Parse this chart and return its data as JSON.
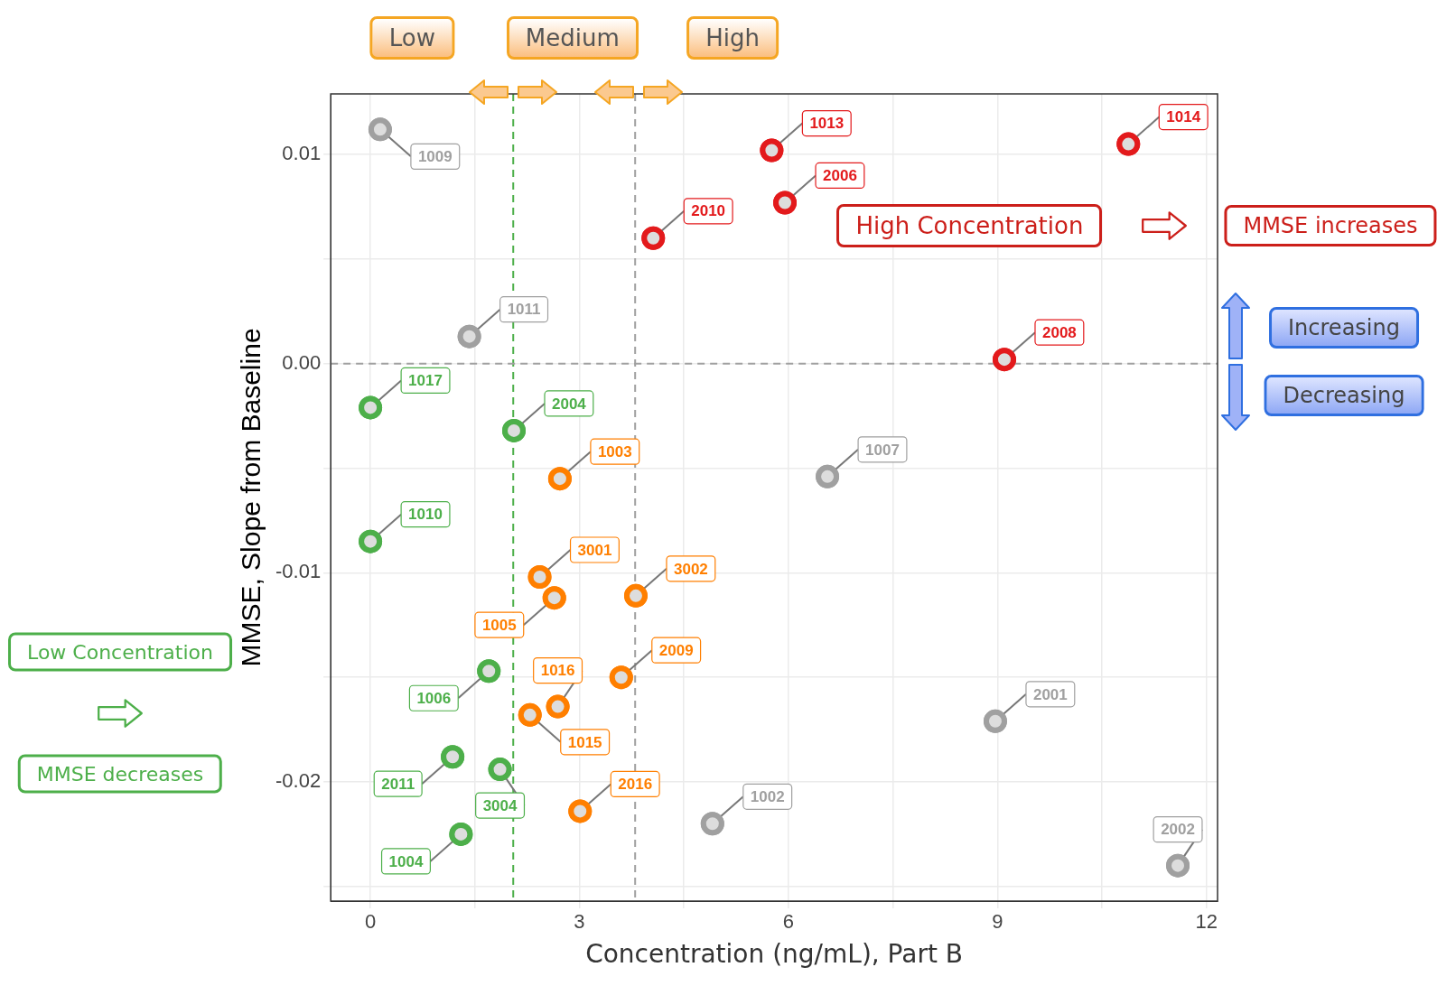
{
  "chart_data": {
    "type": "scatter",
    "xlabel": "Concentration (ng/mL), Part B",
    "ylabel": "MMSE, Slope from Baseline",
    "xlim": [
      -0.57,
      12.16
    ],
    "xticks": [
      0,
      {
        "value": 1.5,
        "label": null
      },
      3,
      {
        "value": 4.5,
        "label": null
      },
      6,
      {
        "value": 7.5,
        "label": null
      },
      9,
      {
        "value": 10.5,
        "label": null
      },
      12
    ],
    "ylim": [
      -0.0257,
      0.0129
    ],
    "yticks": [
      {
        "value": -0.025,
        "label": null
      },
      {
        "value": -0.02,
        "label": "-0.02"
      },
      {
        "value": -0.015,
        "label": null
      },
      {
        "value": -0.01,
        "label": "-0.01"
      },
      {
        "value": -0.005,
        "label": null
      },
      {
        "value": 0,
        "label": "0.00"
      },
      {
        "value": 0.005,
        "label": null
      },
      {
        "value": 0.01,
        "label": "0.01"
      }
    ],
    "grid": true,
    "marker": "circle",
    "series": [
      {
        "name": "1009",
        "color": "#a0a0a0",
        "x": [
          0.14
        ],
        "values": [
          0.0112
        ]
      },
      {
        "name": "1011",
        "color": "#a0a0a0",
        "x": [
          1.42
        ],
        "values": [
          0.0013
        ]
      },
      {
        "name": "1007",
        "color": "#a0a0a0",
        "x": [
          6.56
        ],
        "values": [
          -0.0054
        ]
      },
      {
        "name": "2001",
        "color": "#a0a0a0",
        "x": [
          8.97
        ],
        "values": [
          -0.0171
        ]
      },
      {
        "name": "1002",
        "color": "#a0a0a0",
        "x": [
          4.91
        ],
        "values": [
          -0.022
        ]
      },
      {
        "name": "2002",
        "color": "#a0a0a0",
        "x": [
          11.59
        ],
        "values": [
          -0.024
        ]
      },
      {
        "name": "1013",
        "color": "#e31a1c",
        "x": [
          5.76
        ],
        "values": [
          0.0102
        ]
      },
      {
        "name": "1014",
        "color": "#e31a1c",
        "x": [
          10.88
        ],
        "values": [
          0.0105
        ]
      },
      {
        "name": "2006",
        "color": "#e31a1c",
        "x": [
          5.95
        ],
        "values": [
          0.0077
        ]
      },
      {
        "name": "2010",
        "color": "#e31a1c",
        "x": [
          4.06
        ],
        "values": [
          0.006
        ]
      },
      {
        "name": "2008",
        "color": "#e31a1c",
        "x": [
          9.1
        ],
        "values": [
          0.0002
        ]
      },
      {
        "name": "1003",
        "color": "#ff7f00",
        "x": [
          2.72
        ],
        "values": [
          -0.0055
        ]
      },
      {
        "name": "3001",
        "color": "#ff7f00",
        "x": [
          2.43
        ],
        "values": [
          -0.0102
        ]
      },
      {
        "name": "1005",
        "color": "#ff7f00",
        "x": [
          2.64
        ],
        "values": [
          -0.0112
        ]
      },
      {
        "name": "3002",
        "color": "#ff7f00",
        "x": [
          3.81
        ],
        "values": [
          -0.0111
        ]
      },
      {
        "name": "2009",
        "color": "#ff7f00",
        "x": [
          3.6
        ],
        "values": [
          -0.015
        ]
      },
      {
        "name": "1016",
        "color": "#ff7f00",
        "x": [
          2.69
        ],
        "values": [
          -0.0164
        ]
      },
      {
        "name": "1015",
        "color": "#ff7f00",
        "x": [
          2.29
        ],
        "values": [
          -0.0168
        ]
      },
      {
        "name": "2016",
        "color": "#ff7f00",
        "x": [
          3.01
        ],
        "values": [
          -0.0214
        ]
      },
      {
        "name": "1017",
        "color": "#4daf4a",
        "x": [
          0
        ],
        "values": [
          -0.0021
        ]
      },
      {
        "name": "2004",
        "color": "#4daf4a",
        "x": [
          2.06
        ],
        "values": [
          -0.0032
        ]
      },
      {
        "name": "1010",
        "color": "#4daf4a",
        "x": [
          0
        ],
        "values": [
          -0.0085
        ]
      },
      {
        "name": "1006",
        "color": "#4daf4a",
        "x": [
          1.7
        ],
        "values": [
          -0.0147
        ]
      },
      {
        "name": "2011",
        "color": "#4daf4a",
        "x": [
          1.18
        ],
        "values": [
          -0.0188
        ]
      },
      {
        "name": "3004",
        "color": "#4daf4a",
        "x": [
          1.86
        ],
        "values": [
          -0.0194
        ]
      },
      {
        "name": "1004",
        "color": "#4daf4a",
        "x": [
          1.3
        ],
        "values": [
          -0.0225
        ]
      }
    ],
    "ref_lines": [
      {
        "axis": "x",
        "value": 2.05,
        "color": "#4daf4a",
        "line_style": "dashed"
      },
      {
        "axis": "x",
        "value": 3.8,
        "color": "#a0a0a0",
        "line_style": "dashed"
      },
      {
        "axis": "y",
        "value": 0,
        "color": "#a0a0a0",
        "line_style": "dashed"
      }
    ],
    "annotations": [
      "Low",
      "Medium",
      "High",
      "High Concentration",
      "MMSE increases",
      "Increasing",
      "Decreasing",
      "Low Concentration",
      "MMSE decreases"
    ]
  }
}
